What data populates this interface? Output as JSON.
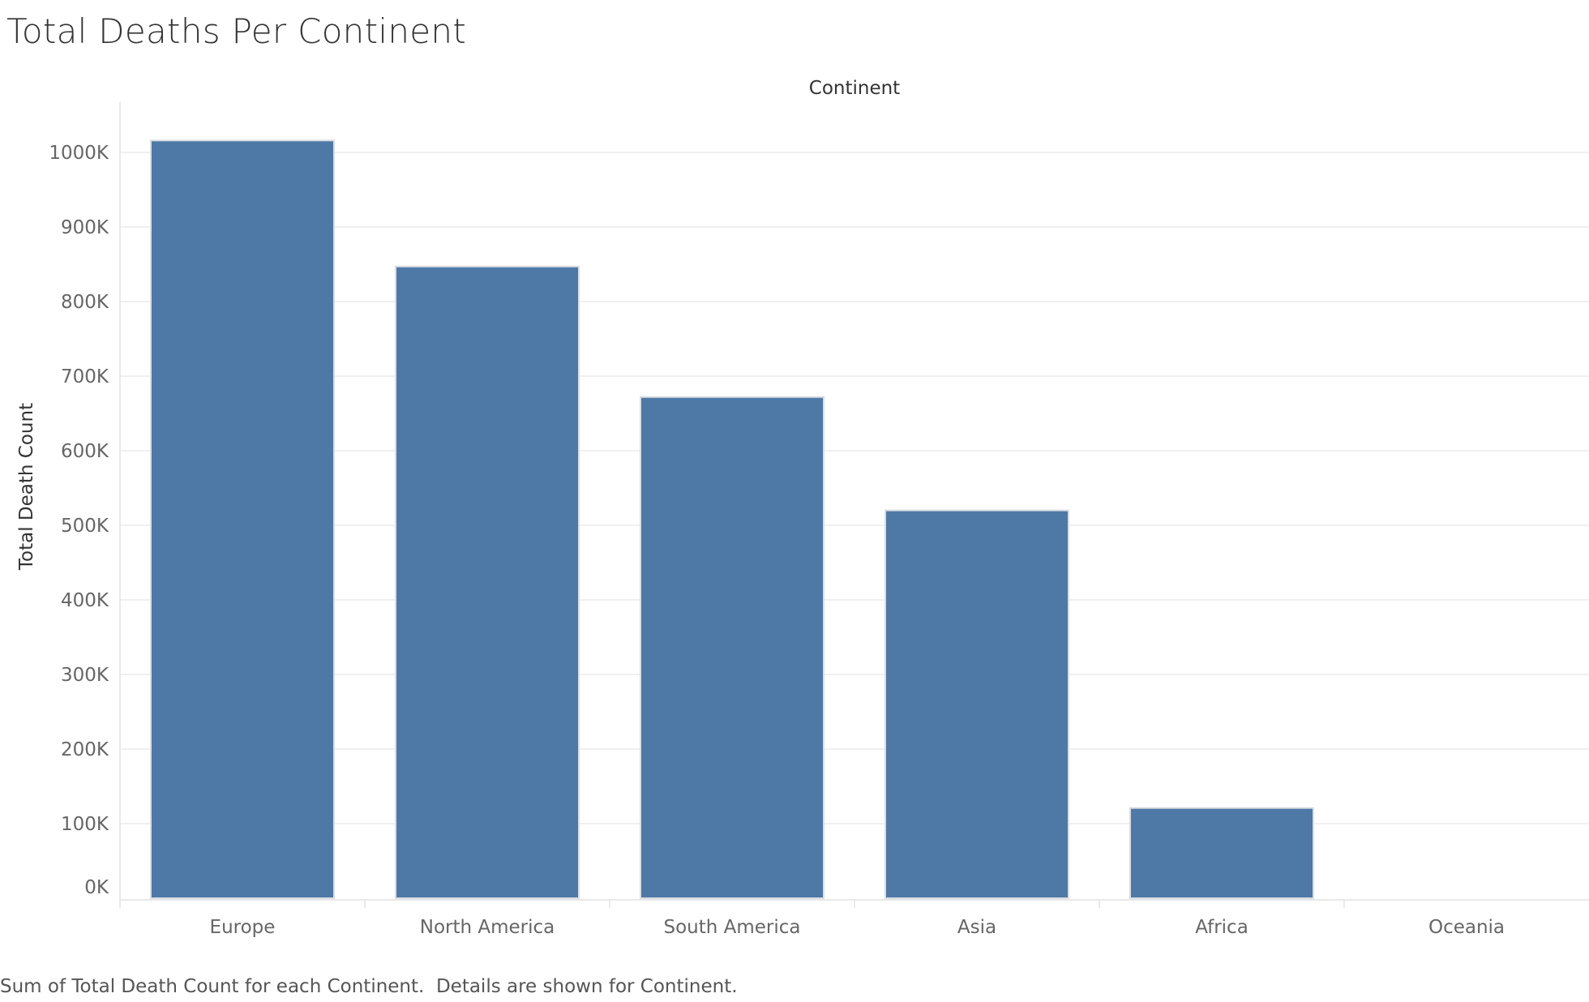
{
  "page": {
    "title": "Total Deaths Per Continent",
    "caption": "Sum of Total Death Count for each Continent.  Details are shown for Continent."
  },
  "chart_data": {
    "type": "bar",
    "title": "Total Deaths Per Continent",
    "xlabel": "Continent",
    "ylabel": "Total Death Count",
    "categories": [
      "Europe",
      "North America",
      "South America",
      "Asia",
      "Africa",
      "Oceania"
    ],
    "values": [
      1016000,
      847000,
      672000,
      520000,
      121000,
      0
    ],
    "ylim": [
      0,
      1000000
    ],
    "yticks": [
      0,
      100000,
      200000,
      300000,
      400000,
      500000,
      600000,
      700000,
      800000,
      900000,
      1000000
    ],
    "ytick_labels": [
      "0K",
      "100K",
      "200K",
      "300K",
      "400K",
      "500K",
      "600K",
      "700K",
      "800K",
      "900K",
      "1000K"
    ],
    "grid": true,
    "colors": {
      "bar": "#4e79a7",
      "bar_edge": "#d9dde3",
      "grid": "#ececec",
      "axis": "#e2e2e2",
      "tick_text": "#666666",
      "label_text": "#333333"
    }
  }
}
